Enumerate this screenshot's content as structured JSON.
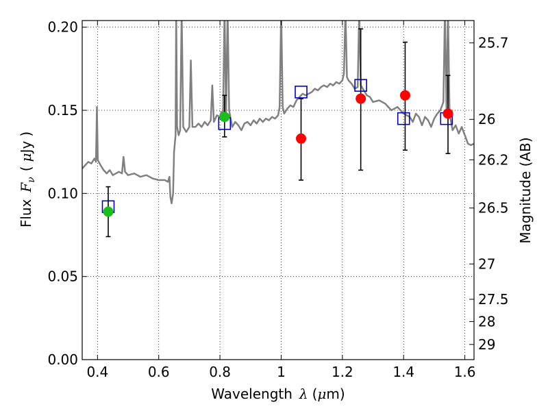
{
  "chart_data": {
    "type": "scatter",
    "title": "",
    "xlabel": "Wavelength",
    "xlabel_symbol": "λ",
    "xlabel_unit_open": "(",
    "xlabel_unit_mu": "μ",
    "xlabel_unit_rest": "m)",
    "ylabel_prefix": "Flux",
    "ylabel_symbol": "F",
    "ylabel_subscript": "ν",
    "ylabel_unit_open": "(",
    "ylabel_unit_mu": "μ",
    "ylabel_unit_rest": "Jy",
    "ylabel_unit_close": ")",
    "y2label": "Magnitude (AB)",
    "xlim": [
      0.35,
      1.63
    ],
    "ylim": [
      0.0,
      0.204
    ],
    "grid": true,
    "x_ticks": [
      {
        "value": 0.4,
        "label": "0.4"
      },
      {
        "value": 0.6,
        "label": "0.6"
      },
      {
        "value": 0.8,
        "label": "0.8"
      },
      {
        "value": 1.0,
        "label": "1"
      },
      {
        "value": 1.2,
        "label": "1.2"
      },
      {
        "value": 1.4,
        "label": "1.4"
      },
      {
        "value": 1.6,
        "label": "1.6"
      }
    ],
    "y_ticks": [
      {
        "value": 0.0,
        "label": "0.00"
      },
      {
        "value": 0.05,
        "label": "0.05"
      },
      {
        "value": 0.1,
        "label": "0.10"
      },
      {
        "value": 0.15,
        "label": "0.15"
      },
      {
        "value": 0.2,
        "label": "0.20"
      }
    ],
    "mag_ticks": [
      {
        "value": 25.7,
        "label": "25.7"
      },
      {
        "value": 26.0,
        "label": "26"
      },
      {
        "value": 26.2,
        "label": "26.2"
      },
      {
        "value": 26.5,
        "label": "26.5"
      },
      {
        "value": 27.0,
        "label": "27"
      },
      {
        "value": 27.5,
        "label": "27.5"
      },
      {
        "value": 28.0,
        "label": "28"
      },
      {
        "value": 29.0,
        "label": "29"
      }
    ],
    "series": [
      {
        "kind": "line",
        "color": "#808080",
        "points": [
          [
            0.35,
            0.115
          ],
          [
            0.36,
            0.117
          ],
          [
            0.37,
            0.119
          ],
          [
            0.38,
            0.118
          ],
          [
            0.39,
            0.121
          ],
          [
            0.395,
            0.119
          ],
          [
            0.398,
            0.152
          ],
          [
            0.401,
            0.12
          ],
          [
            0.41,
            0.117
          ],
          [
            0.42,
            0.114
          ],
          [
            0.43,
            0.112
          ],
          [
            0.44,
            0.114
          ],
          [
            0.45,
            0.111
          ],
          [
            0.46,
            0.112
          ],
          [
            0.47,
            0.113
          ],
          [
            0.48,
            0.112
          ],
          [
            0.485,
            0.122
          ],
          [
            0.49,
            0.113
          ],
          [
            0.5,
            0.111
          ],
          [
            0.52,
            0.112
          ],
          [
            0.54,
            0.11
          ],
          [
            0.56,
            0.111
          ],
          [
            0.58,
            0.109
          ],
          [
            0.6,
            0.108
          ],
          [
            0.62,
            0.108
          ],
          [
            0.63,
            0.107
          ],
          [
            0.635,
            0.11
          ],
          [
            0.638,
            0.098
          ],
          [
            0.642,
            0.094
          ],
          [
            0.647,
            0.1
          ],
          [
            0.65,
            0.125
          ],
          [
            0.655,
            0.135
          ],
          [
            0.657,
            0.21
          ],
          [
            0.66,
            0.14
          ],
          [
            0.665,
            0.135
          ],
          [
            0.67,
            0.138
          ],
          [
            0.675,
            0.21
          ],
          [
            0.68,
            0.14
          ],
          [
            0.69,
            0.137
          ],
          [
            0.7,
            0.14
          ],
          [
            0.705,
            0.18
          ],
          [
            0.71,
            0.14
          ],
          [
            0.72,
            0.14
          ],
          [
            0.73,
            0.142
          ],
          [
            0.74,
            0.14
          ],
          [
            0.75,
            0.143
          ],
          [
            0.76,
            0.141
          ],
          [
            0.77,
            0.144
          ],
          [
            0.775,
            0.165
          ],
          [
            0.78,
            0.143
          ],
          [
            0.79,
            0.147
          ],
          [
            0.8,
            0.146
          ],
          [
            0.805,
            0.149
          ],
          [
            0.81,
            0.146
          ],
          [
            0.815,
            0.21
          ],
          [
            0.82,
            0.148
          ],
          [
            0.825,
            0.21
          ],
          [
            0.83,
            0.15
          ],
          [
            0.84,
            0.14
          ],
          [
            0.85,
            0.143
          ],
          [
            0.86,
            0.141
          ],
          [
            0.87,
            0.138
          ],
          [
            0.88,
            0.142
          ],
          [
            0.89,
            0.143
          ],
          [
            0.9,
            0.141
          ],
          [
            0.91,
            0.144
          ],
          [
            0.92,
            0.142
          ],
          [
            0.93,
            0.145
          ],
          [
            0.94,
            0.143
          ],
          [
            0.95,
            0.145
          ],
          [
            0.96,
            0.144
          ],
          [
            0.97,
            0.146
          ],
          [
            0.98,
            0.145
          ],
          [
            0.99,
            0.147
          ],
          [
            0.995,
            0.152
          ],
          [
            1.0,
            0.21
          ],
          [
            1.005,
            0.152
          ],
          [
            1.01,
            0.148
          ],
          [
            1.02,
            0.151
          ],
          [
            1.03,
            0.153
          ],
          [
            1.04,
            0.152
          ],
          [
            1.05,
            0.156
          ],
          [
            1.06,
            0.158
          ],
          [
            1.07,
            0.16
          ],
          [
            1.08,
            0.159
          ],
          [
            1.09,
            0.16
          ],
          [
            1.1,
            0.161
          ],
          [
            1.11,
            0.163
          ],
          [
            1.12,
            0.162
          ],
          [
            1.13,
            0.164
          ],
          [
            1.14,
            0.165
          ],
          [
            1.15,
            0.164
          ],
          [
            1.16,
            0.166
          ],
          [
            1.17,
            0.165
          ],
          [
            1.18,
            0.167
          ],
          [
            1.19,
            0.166
          ],
          [
            1.2,
            0.168
          ],
          [
            1.205,
            0.172
          ],
          [
            1.21,
            0.21
          ],
          [
            1.215,
            0.17
          ],
          [
            1.22,
            0.168
          ],
          [
            1.23,
            0.166
          ],
          [
            1.24,
            0.163
          ],
          [
            1.25,
            0.164
          ],
          [
            1.255,
            0.21
          ],
          [
            1.26,
            0.165
          ],
          [
            1.27,
            0.162
          ],
          [
            1.28,
            0.159
          ],
          [
            1.29,
            0.158
          ],
          [
            1.3,
            0.155
          ],
          [
            1.32,
            0.156
          ],
          [
            1.34,
            0.154
          ],
          [
            1.36,
            0.15
          ],
          [
            1.38,
            0.152
          ],
          [
            1.4,
            0.148
          ],
          [
            1.42,
            0.146
          ],
          [
            1.43,
            0.143
          ],
          [
            1.44,
            0.148
          ],
          [
            1.45,
            0.146
          ],
          [
            1.46,
            0.141
          ],
          [
            1.47,
            0.146
          ],
          [
            1.48,
            0.144
          ],
          [
            1.49,
            0.14
          ],
          [
            1.5,
            0.145
          ],
          [
            1.51,
            0.148
          ],
          [
            1.52,
            0.15
          ],
          [
            1.53,
            0.155
          ],
          [
            1.535,
            0.21
          ],
          [
            1.54,
            0.15
          ],
          [
            1.545,
            0.21
          ],
          [
            1.55,
            0.148
          ],
          [
            1.56,
            0.138
          ],
          [
            1.57,
            0.141
          ],
          [
            1.58,
            0.136
          ],
          [
            1.59,
            0.14
          ],
          [
            1.6,
            0.135
          ],
          [
            1.61,
            0.13
          ],
          [
            1.62,
            0.129
          ],
          [
            1.63,
            0.13
          ]
        ]
      },
      {
        "kind": "errorbar",
        "color": "#000000",
        "bars": [
          {
            "x": 0.435,
            "ylow": 0.074,
            "yhigh": 0.104
          },
          {
            "x": 0.815,
            "ylow": 0.134,
            "yhigh": 0.159
          },
          {
            "x": 1.065,
            "ylow": 0.108,
            "yhigh": 0.157
          },
          {
            "x": 1.26,
            "ylow": 0.114,
            "yhigh": 0.199
          },
          {
            "x": 1.405,
            "ylow": 0.126,
            "yhigh": 0.191
          },
          {
            "x": 1.545,
            "ylow": 0.124,
            "yhigh": 0.171
          }
        ]
      },
      {
        "kind": "scatter",
        "marker": "square-open",
        "color": "#0000cc",
        "points": [
          [
            0.435,
            0.092
          ],
          [
            0.815,
            0.142
          ],
          [
            1.065,
            0.161
          ],
          [
            1.26,
            0.165
          ],
          [
            1.4,
            0.145
          ],
          [
            1.54,
            0.145
          ]
        ]
      },
      {
        "kind": "scatter",
        "marker": "circle",
        "color": "#1bbf1b",
        "points": [
          [
            0.435,
            0.089
          ],
          [
            0.815,
            0.146
          ]
        ]
      },
      {
        "kind": "scatter",
        "marker": "circle",
        "color": "#ff0000",
        "points": [
          [
            1.065,
            0.133
          ],
          [
            1.26,
            0.157
          ],
          [
            1.405,
            0.159
          ],
          [
            1.545,
            0.148
          ]
        ]
      }
    ]
  }
}
